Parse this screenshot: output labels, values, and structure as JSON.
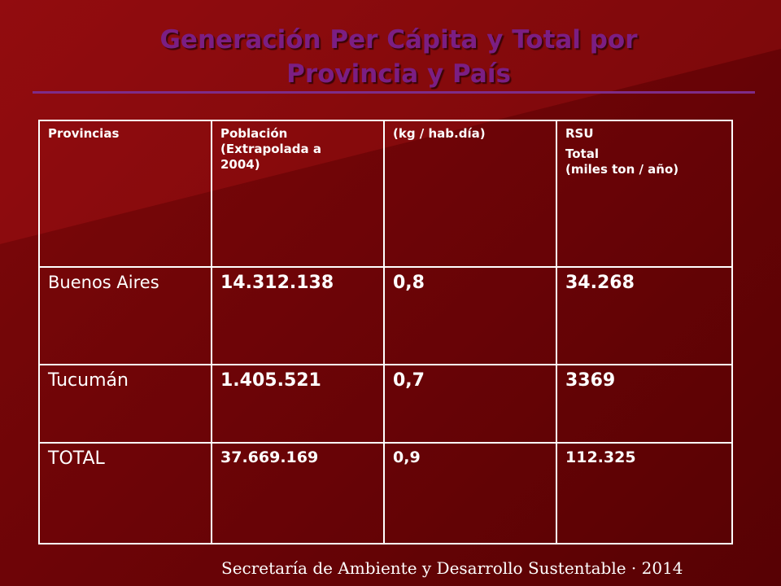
{
  "colors": {
    "background": "#7c0709",
    "title": "#7b1e83",
    "rule": "#7e2c88",
    "table_border": "#ffffff",
    "province_highlight": "#b8b8ee",
    "value_text": "#d7d2ea"
  },
  "slide": {
    "title_line1": "Generación Per Cápita y Total por",
    "title_line2": "Provincia y País"
  },
  "table": {
    "headers": {
      "provincias": "Provincias",
      "poblacion_line1": "Población",
      "poblacion_line2": "(Extrapolada a",
      "poblacion_line3": "2004)",
      "per_capita": "(kg / hab.día)",
      "rsu_line1": "RSU",
      "rsu_line2": "Total",
      "rsu_line3": "(miles ton / año)"
    },
    "rows": [
      {
        "provincia": "Buenos Aires",
        "poblacion": "14.312.138",
        "per_capita": "0,8",
        "rsu_total": "34.268"
      },
      {
        "provincia": "Tucumán",
        "poblacion": "1.405.521",
        "per_capita": "0,7",
        "rsu_total": "3369"
      },
      {
        "provincia": "TOTAL",
        "poblacion": "37.669.169",
        "per_capita": "0,9",
        "rsu_total": "112.325"
      }
    ]
  },
  "footer": {
    "text": "Secretaría de Ambiente y Desarrollo Sustentable · 2014"
  }
}
